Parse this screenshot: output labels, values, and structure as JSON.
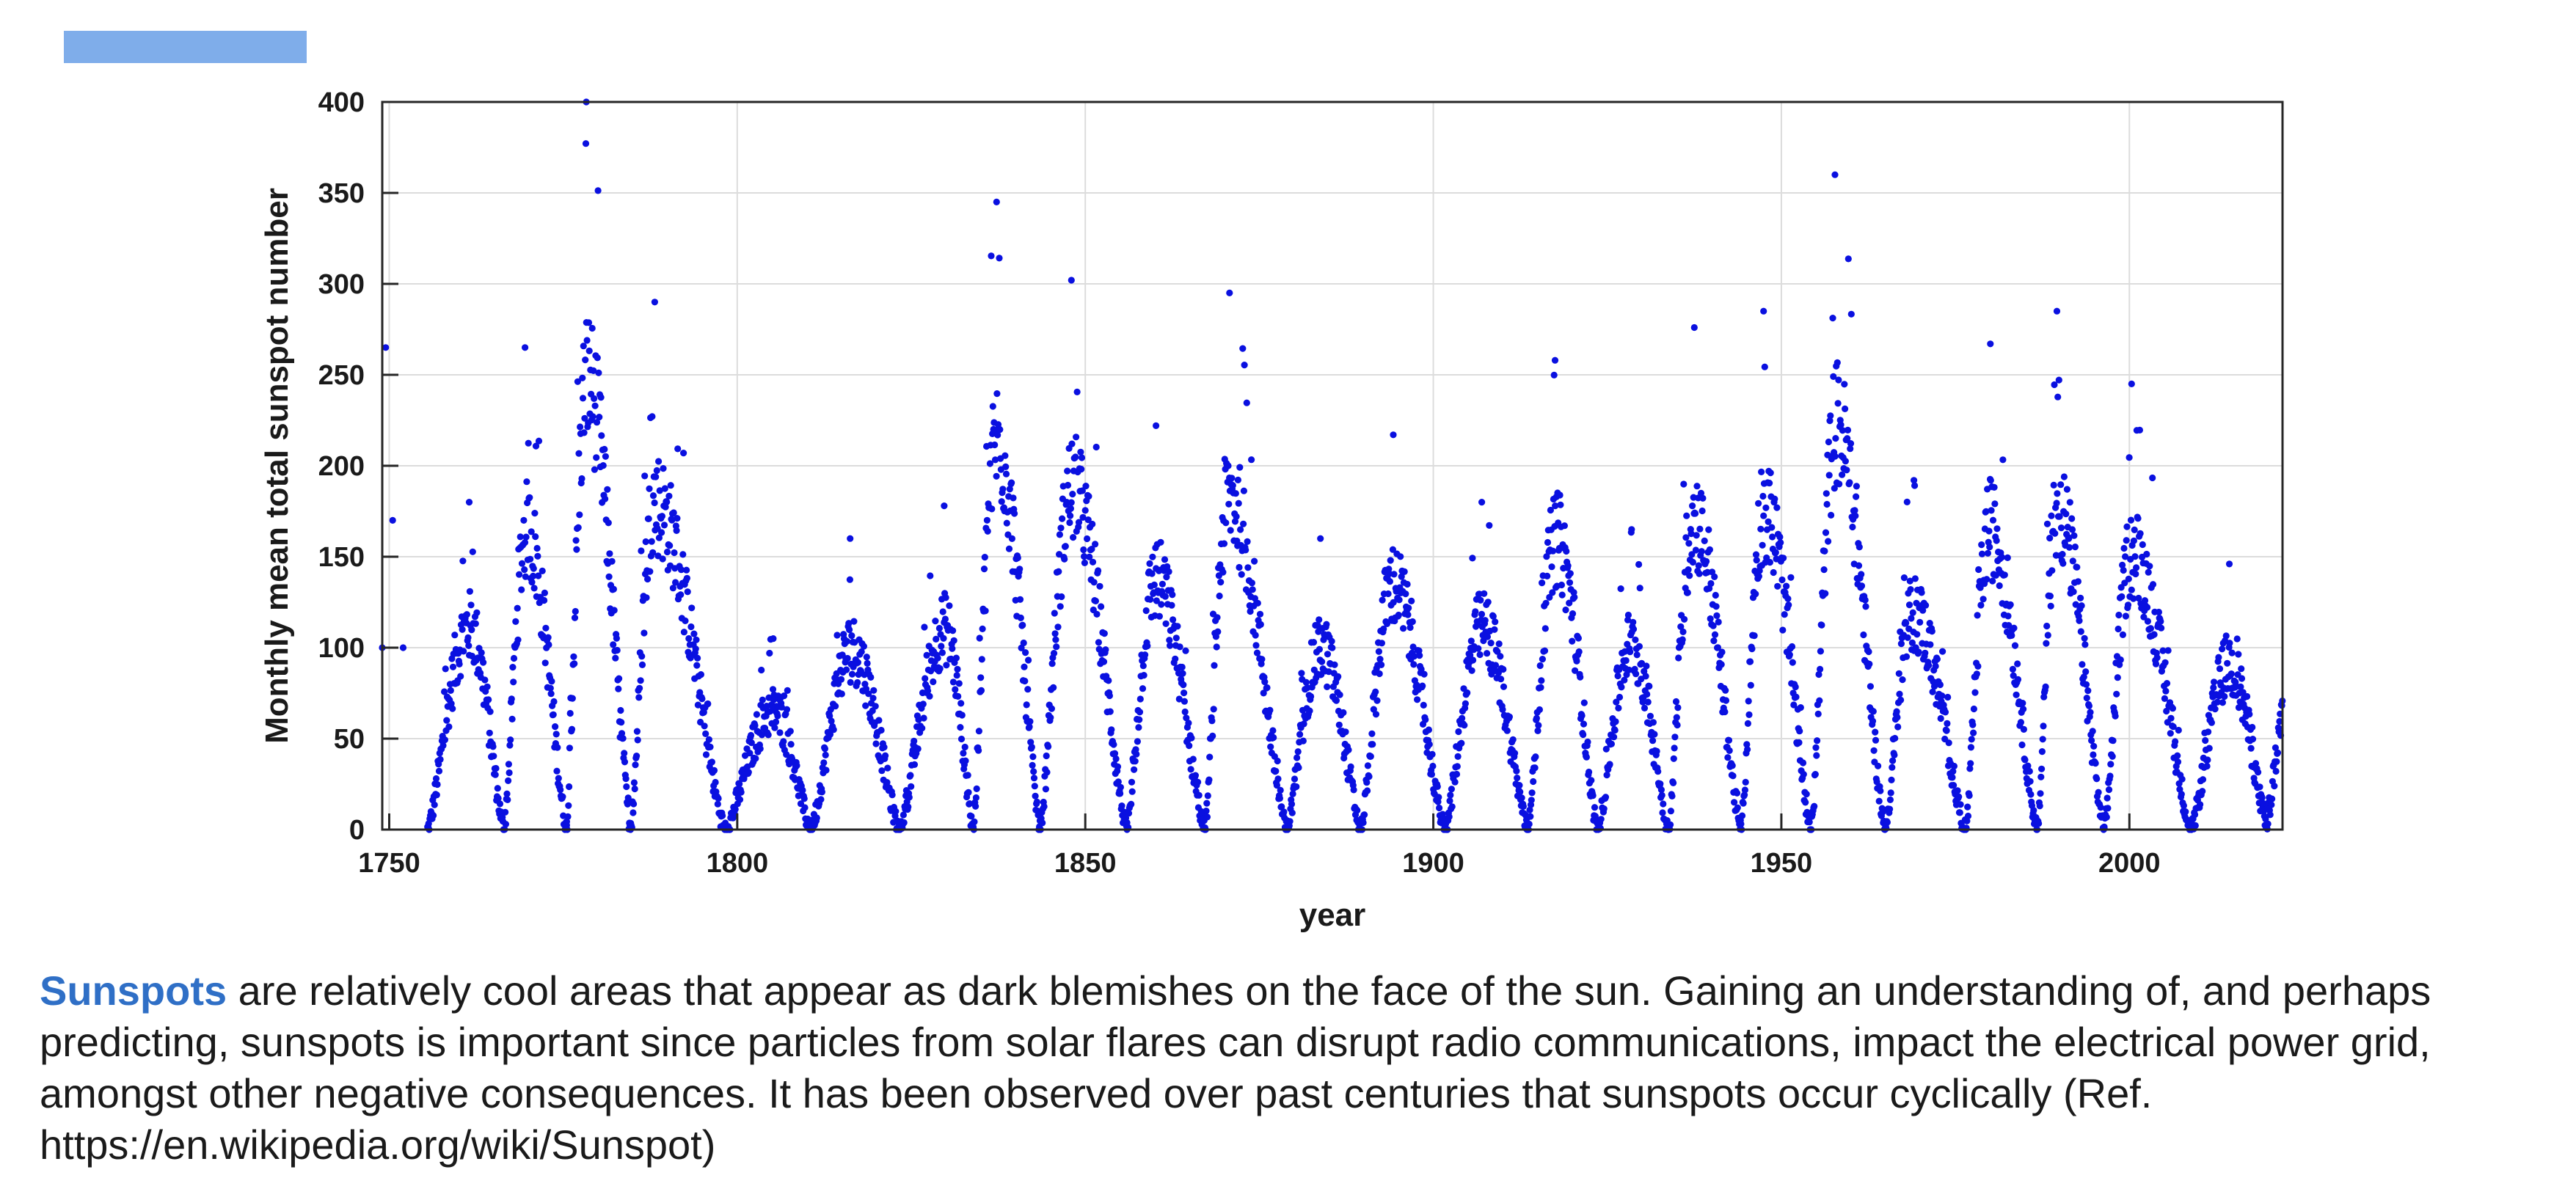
{
  "colors": {
    "accent": "#7fadea",
    "marker": "#0a10e0",
    "term": "#2f6fc6"
  },
  "caption": {
    "term": "Sunspots",
    "text": " are relatively cool areas that appear as dark blemishes on the face of the sun. Gaining an understanding of, and perhaps predicting, sunspots is important since particles from solar flares can disrupt radio communications, impact the electrical power grid, amongst other negative consequences. It has been observed over past centuries that sunspots occur cyclically (Ref. https://en.wikipedia.org/wiki/Sunspot)"
  },
  "chart_data": {
    "type": "scatter",
    "title": "",
    "xlabel": "year",
    "ylabel": "Monthly mean total sunspot number",
    "xlim": [
      1749,
      2022
    ],
    "ylim": [
      0,
      400
    ],
    "xticks": [
      1750,
      1800,
      1850,
      1900,
      1950,
      2000
    ],
    "yticks": [
      0,
      50,
      100,
      150,
      200,
      250,
      300,
      350,
      400
    ],
    "grid": true,
    "legend": "none",
    "series": [
      {
        "marker": "dot",
        "cycle_extrema_approx": {
          "minima_years": [
            1755.5,
            1766.5,
            1775.5,
            1784.7,
            1798.3,
            1810.6,
            1823.3,
            1833.9,
            1843.5,
            1856.0,
            1867.2,
            1878.9,
            1889.6,
            1901.7,
            1913.6,
            1923.6,
            1933.8,
            1944.2,
            1954.3,
            1964.9,
            1976.5,
            1986.8,
            1996.4,
            2008.9,
            2019.9
          ],
          "maxima_years": [
            1761.5,
            1769.7,
            1778.4,
            1788.1,
            1805.2,
            1816.4,
            1829.9,
            1837.2,
            1848.1,
            1860.1,
            1870.6,
            1883.9,
            1894.1,
            1907.0,
            1917.6,
            1928.4,
            1937.4,
            1947.5,
            1957.9,
            1968.9,
            1979.9,
            1989.6,
            2000.3,
            2014.3
          ],
          "peak_monthly_values": [
            180,
            265,
            400,
            290,
            105,
            160,
            178,
            345,
            302,
            222,
            295,
            160,
            217,
            180,
            258,
            165,
            276,
            285,
            360,
            192,
            267,
            285,
            245,
            146
          ],
          "early_values": [
            {
              "x": 1749.0,
              "y": 100
            },
            {
              "x": 1749.5,
              "y": 265
            },
            {
              "x": 1750.5,
              "y": 170
            },
            {
              "x": 1752.0,
              "y": 100
            }
          ]
        }
      }
    ]
  }
}
